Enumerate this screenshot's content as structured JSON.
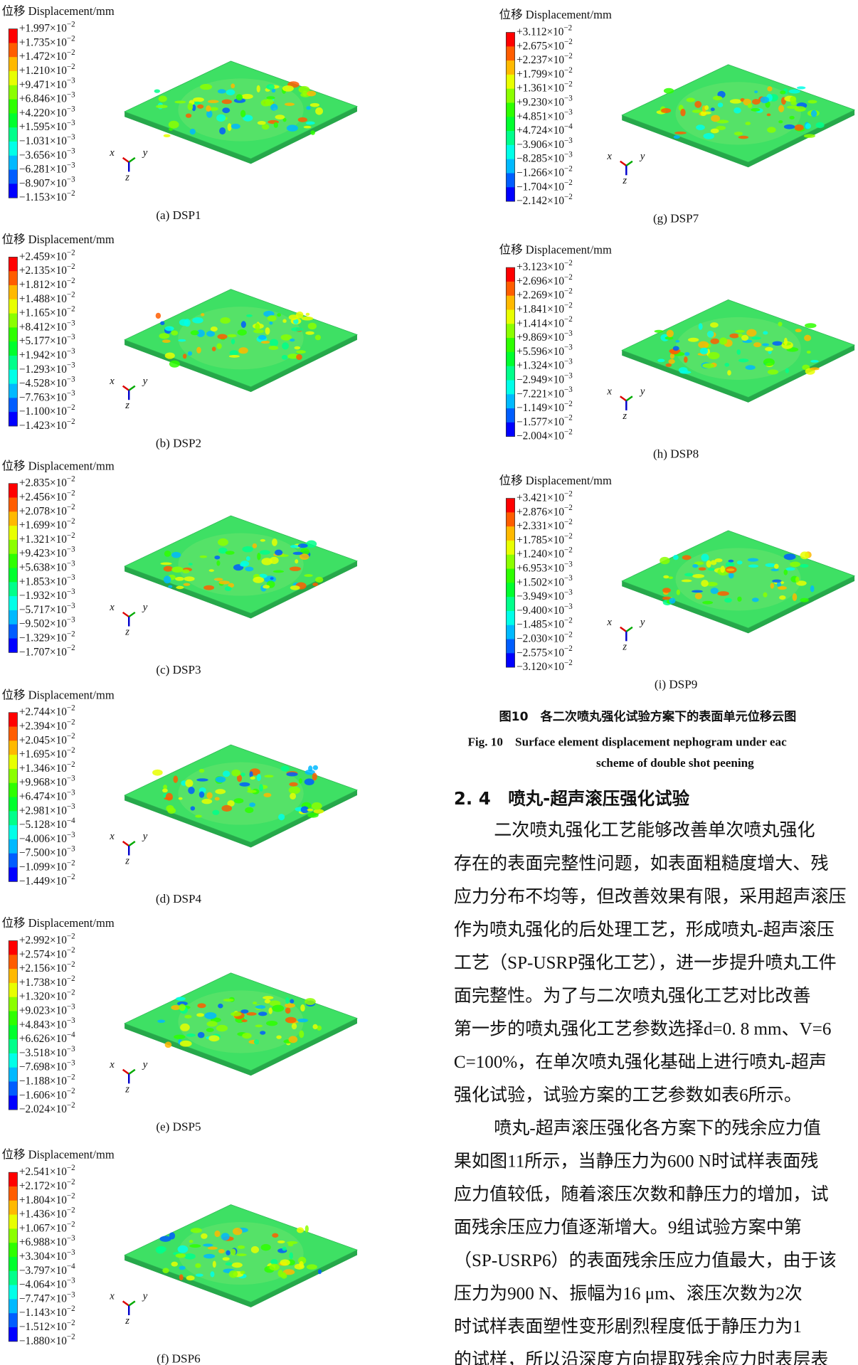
{
  "figure": {
    "panels": [
      {
        "legend_title": "位移 Displacement/mm",
        "labels": [
          [
            "+1.997×10",
            "−2"
          ],
          [
            "+1.735×10",
            "−2"
          ],
          [
            "+1.472×10",
            "−2"
          ],
          [
            "+1.210×10",
            "−2"
          ],
          [
            "+9.471×10",
            "−3"
          ],
          [
            "+6.846×10",
            "−3"
          ],
          [
            "+4.220×10",
            "−3"
          ],
          [
            "+1.595×10",
            "−3"
          ],
          [
            "−1.031×10",
            "−3"
          ],
          [
            "−3.656×10",
            "−3"
          ],
          [
            "−6.281×10",
            "−3"
          ],
          [
            "−8.907×10",
            "−3"
          ],
          [
            "−1.153×10",
            "−2"
          ]
        ],
        "axes": [
          "x",
          "y",
          "z"
        ],
        "caption": "(a) DSP1"
      },
      {
        "legend_title": "位移 Displacement/mm",
        "labels": [
          [
            "+2.459×10",
            "−2"
          ],
          [
            "+2.135×10",
            "−2"
          ],
          [
            "+1.812×10",
            "−2"
          ],
          [
            "+1.488×10",
            "−2"
          ],
          [
            "+1.165×10",
            "−2"
          ],
          [
            "+8.412×10",
            "−3"
          ],
          [
            "+5.177×10",
            "−3"
          ],
          [
            "+1.942×10",
            "−3"
          ],
          [
            "−1.293×10",
            "−3"
          ],
          [
            "−4.528×10",
            "−3"
          ],
          [
            "−7.763×10",
            "−3"
          ],
          [
            "−1.100×10",
            "−2"
          ],
          [
            "−1.423×10",
            "−2"
          ]
        ],
        "axes": [
          "x",
          "y",
          "z"
        ],
        "caption": "(b) DSP2"
      },
      {
        "legend_title": "位移 Displacement/mm",
        "labels": [
          [
            "+2.835×10",
            "−2"
          ],
          [
            "+2.456×10",
            "−2"
          ],
          [
            "+2.078×10",
            "−2"
          ],
          [
            "+1.699×10",
            "−2"
          ],
          [
            "+1.321×10",
            "−2"
          ],
          [
            "+9.423×10",
            "−3"
          ],
          [
            "+5.638×10",
            "−3"
          ],
          [
            "+1.853×10",
            "−3"
          ],
          [
            "−1.932×10",
            "−3"
          ],
          [
            "−5.717×10",
            "−3"
          ],
          [
            "−9.502×10",
            "−3"
          ],
          [
            "−1.329×10",
            "−2"
          ],
          [
            "−1.707×10",
            "−2"
          ]
        ],
        "axes": [
          "x",
          "y",
          "z"
        ],
        "caption": "(c) DSP3"
      },
      {
        "legend_title": "位移 Displacement/mm",
        "labels": [
          [
            "+2.744×10",
            "−2"
          ],
          [
            "+2.394×10",
            "−2"
          ],
          [
            "+2.045×10",
            "−2"
          ],
          [
            "+1.695×10",
            "−2"
          ],
          [
            "+1.346×10",
            "−2"
          ],
          [
            "+9.968×10",
            "−3"
          ],
          [
            "+6.474×10",
            "−3"
          ],
          [
            "+2.981×10",
            "−3"
          ],
          [
            "−5.128×10",
            "−4"
          ],
          [
            "−4.006×10",
            "−3"
          ],
          [
            "−7.500×10",
            "−3"
          ],
          [
            "−1.099×10",
            "−2"
          ],
          [
            "−1.449×10",
            "−2"
          ]
        ],
        "axes": [
          "x",
          "y",
          "z"
        ],
        "caption": "(d) DSP4"
      },
      {
        "legend_title": "位移 Displacement/mm",
        "labels": [
          [
            "+2.992×10",
            "−2"
          ],
          [
            "+2.574×10",
            "−2"
          ],
          [
            "+2.156×10",
            "−2"
          ],
          [
            "+1.738×10",
            "−2"
          ],
          [
            "+1.320×10",
            "−2"
          ],
          [
            "+9.023×10",
            "−3"
          ],
          [
            "+4.843×10",
            "−3"
          ],
          [
            "+6.626×10",
            "−4"
          ],
          [
            "−3.518×10",
            "−3"
          ],
          [
            "−7.698×10",
            "−3"
          ],
          [
            "−1.188×10",
            "−2"
          ],
          [
            "−1.606×10",
            "−2"
          ],
          [
            "−2.024×10",
            "−2"
          ]
        ],
        "axes": [
          "x",
          "y",
          "z"
        ],
        "caption": "(e) DSP5"
      },
      {
        "legend_title": "位移 Displacement/mm",
        "labels": [
          [
            "+2.541×10",
            "−2"
          ],
          [
            "+2.172×10",
            "−2"
          ],
          [
            "+1.804×10",
            "−2"
          ],
          [
            "+1.436×10",
            "−2"
          ],
          [
            "+1.067×10",
            "−2"
          ],
          [
            "+6.988×10",
            "−3"
          ],
          [
            "+3.304×10",
            "−3"
          ],
          [
            "−3.797×10",
            "−4"
          ],
          [
            "−4.064×10",
            "−3"
          ],
          [
            "−7.747×10",
            "−3"
          ],
          [
            "−1.143×10",
            "−2"
          ],
          [
            "−1.512×10",
            "−2"
          ],
          [
            "−1.880×10",
            "−2"
          ]
        ],
        "axes": [
          "x",
          "y",
          "z"
        ],
        "caption": "(f) DSP6"
      },
      {
        "legend_title": "位移 Displacement/mm",
        "labels": [
          [
            "+3.112×10",
            "−2"
          ],
          [
            "+2.675×10",
            "−2"
          ],
          [
            "+2.237×10",
            "−2"
          ],
          [
            "+1.799×10",
            "−2"
          ],
          [
            "+1.361×10",
            "−2"
          ],
          [
            "+9.230×10",
            "−3"
          ],
          [
            "+4.851×10",
            "−3"
          ],
          [
            "+4.724×10",
            "−4"
          ],
          [
            "−3.906×10",
            "−3"
          ],
          [
            "−8.285×10",
            "−3"
          ],
          [
            "−1.266×10",
            "−2"
          ],
          [
            "−1.704×10",
            "−2"
          ],
          [
            "−2.142×10",
            "−2"
          ]
        ],
        "axes": [
          "x",
          "y",
          "z"
        ],
        "caption": "(g) DSP7"
      },
      {
        "legend_title": "位移 Displacement/mm",
        "labels": [
          [
            "+3.123×10",
            "−2"
          ],
          [
            "+2.696×10",
            "−2"
          ],
          [
            "+2.269×10",
            "−2"
          ],
          [
            "+1.841×10",
            "−2"
          ],
          [
            "+1.414×10",
            "−2"
          ],
          [
            "+9.869×10",
            "−3"
          ],
          [
            "+5.596×10",
            "−3"
          ],
          [
            "+1.324×10",
            "−3"
          ],
          [
            "−2.949×10",
            "−3"
          ],
          [
            "−7.221×10",
            "−3"
          ],
          [
            "−1.149×10",
            "−2"
          ],
          [
            "−1.577×10",
            "−2"
          ],
          [
            "−2.004×10",
            "−2"
          ]
        ],
        "axes": [
          "x",
          "y",
          "z"
        ],
        "caption": "(h) DSP8"
      },
      {
        "legend_title": "位移 Displacement/mm",
        "labels": [
          [
            "+3.421×10",
            "−2"
          ],
          [
            "+2.876×10",
            "−2"
          ],
          [
            "+2.331×10",
            "−2"
          ],
          [
            "+1.785×10",
            "−2"
          ],
          [
            "+1.240×10",
            "−2"
          ],
          [
            "+6.953×10",
            "−3"
          ],
          [
            "+1.502×10",
            "−3"
          ],
          [
            "−3.949×10",
            "−3"
          ],
          [
            "−9.400×10",
            "−3"
          ],
          [
            "−1.485×10",
            "−2"
          ],
          [
            "−2.030×10",
            "−2"
          ],
          [
            "−2.575×10",
            "−2"
          ],
          [
            "−3.120×10",
            "−2"
          ]
        ],
        "axes": [
          "x",
          "y",
          "z"
        ],
        "caption": "(i) DSP9"
      }
    ],
    "caption_zh": "图10　各二次喷丸强化试验方案下的表面单元位移云图",
    "caption_en": [
      "Fig. 10　Surface element displacement nephogram under eac",
      "scheme of double shot peening"
    ]
  },
  "section": {
    "heading": "2. 4　喷丸-超声滚压强化试验",
    "paragraphs": [
      [
        "二次喷丸强化工艺能够改善单次喷丸强化",
        "存在的表面完整性问题，如表面粗糙度增大、残",
        "应力分布不均等，但改善效果有限，采用超声滚压",
        "作为喷丸强化的后处理工艺，形成喷丸-超声滚压",
        "工艺（SP-USRP强化工艺），进一步提升喷丸工件",
        "面完整性。为了与二次喷丸强化工艺对比改善",
        "第一步的喷丸强化工艺参数选择d=0. 8 mm、V=6",
        "C=100%，在单次喷丸强化基础上进行喷丸-超声",
        "强化试验，试验方案的工艺参数如表6所示。"
      ],
      [
        "喷丸-超声滚压强化各方案下的残余应力值",
        "果如图11所示，当静压力为600 N时试样表面残",
        "应力值较低，随着滚压次数和静压力的增加，试",
        "面残余压应力值逐渐增大。9组试验方案中第",
        "（SP-USRP6）的表面残余压应力值最大，由于该",
        "压力为900 N、振幅为16 μm、滚压次数为2次",
        "时试样表面塑性变形剧烈程度低于静压力为1",
        "的试样，所以沿深度方向提取残余应力时表层表"
      ]
    ]
  }
}
